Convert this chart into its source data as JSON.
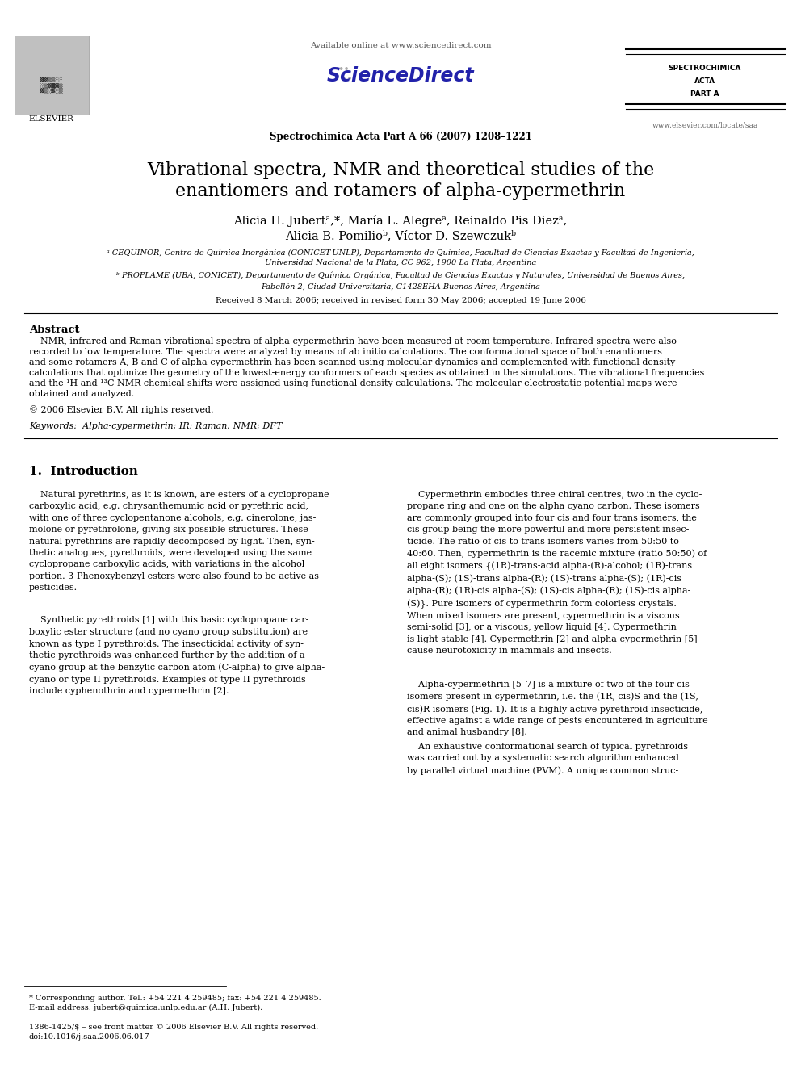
{
  "bg_color": "#ffffff",
  "available_online": "Available online at www.sciencedirect.com",
  "journal_name": "Spectrochimica Acta Part A 66 (2007) 1208–1221",
  "journal_website": "www.elsevier.com/locate/saa",
  "spectrochimica_lines": [
    "SPECTROCHIMICA",
    "ACTA",
    "PART A"
  ],
  "title_line1": "Vibrational spectra, NMR and theoretical studies of the",
  "title_line2": "enantiomers and rotamers of alpha-cypermethrin",
  "authors_line1": "Alicia H. Jubertᵃ,*, María L. Alegreᵃ, Reinaldo Pis Diezᵃ,",
  "authors_line2": "Alicia B. Pomilioᵇ, Víctor D. Szewczukᵇ",
  "affil_a": "ᵃ CEQUINOR, Centro de Química Inorgánica (CONICET-UNLP), Departamento de Química, Facultad de Ciencias Exactas y Facultad de Ingeniería,",
  "affil_a2": "Universidad Nacional de la Plata, CC 962, 1900 La Plata, Argentina",
  "affil_b": "ᵇ PROPLAME (UBA, CONICET), Departamento de Química Orgánica, Facultad de Ciencias Exactas y Naturales, Universidad de Buenos Aires,",
  "affil_b2": "Pabellón 2, Ciudad Universitaria, C1428EHA Buenos Aires, Argentina",
  "received": "Received 8 March 2006; received in revised form 30 May 2006; accepted 19 June 2006",
  "abstract_title": "Abstract",
  "abstract_line1": "    NMR, infrared and Raman vibrational spectra of alpha-cypermethrin have been measured at room temperature. Infrared spectra were also",
  "abstract_line2": "recorded to low temperature. The spectra were analyzed by means of ab initio calculations. The conformational space of both enantiomers",
  "abstract_line3": "and some rotamers A, B and C of alpha-cypermethrin has been scanned using molecular dynamics and complemented with functional density",
  "abstract_line4": "calculations that optimize the geometry of the lowest-energy conformers of each species as obtained in the simulations. The vibrational frequencies",
  "abstract_line5": "and the ¹H and ¹³C NMR chemical shifts were assigned using functional density calculations. The molecular electrostatic potential maps were",
  "abstract_line6": "obtained and analyzed.",
  "copyright": "© 2006 Elsevier B.V. All rights reserved.",
  "keywords": "Keywords:  Alpha-cypermethrin; IR; Raman; NMR; DFT",
  "section1_title": "1.  Introduction",
  "intro_left1": "    Natural pyrethrins, as it is known, are esters of a cyclopropane\ncarboxylic acid, e.g. chrysanthemumic acid or pyrethric acid,\nwith one of three cyclopentanone alcohols, e.g. cinerolone, jas-\nmolone or pyrethrolone, giving six possible structures. These\nnatural pyrethrins are rapidly decomposed by light. Then, syn-\nthetic analogues, pyrethroids, were developed using the same\ncyclopropane carboxylic acids, with variations in the alcohol\nportion. 3-Phenoxybenzyl esters were also found to be active as\npesticides.",
  "intro_left2": "    Synthetic pyrethroids [1] with this basic cyclopropane car-\nboxylic ester structure (and no cyano group substitution) are\nknown as type I pyrethroids. The insecticidal activity of syn-\nthetic pyrethroids was enhanced further by the addition of a\ncyano group at the benzylic carbon atom (C-alpha) to give alpha-\ncyano or type II pyrethroids. Examples of type II pyrethroids\ninclude cyphenothrin and cypermethrin [2].",
  "intro_right1": "    Cypermethrin embodies three chiral centres, two in the cyclo-\npropane ring and one on the alpha cyano carbon. These isomers\nare commonly grouped into four cis and four trans isomers, the\ncis group being the more powerful and more persistent insec-\nticide. The ratio of cis to trans isomers varies from 50:50 to\n40:60. Then, cypermethrin is the racemic mixture (ratio 50:50) of\nall eight isomers {(1R)-trans-acid alpha-(R)-alcohol; (1R)-trans\nalpha-(S); (1S)-trans alpha-(R); (1S)-trans alpha-(S); (1R)-cis\nalpha-(R); (1R)-cis alpha-(S); (1S)-cis alpha-(R); (1S)-cis alpha-\n(S)}. Pure isomers of cypermethrin form colorless crystals.\nWhen mixed isomers are present, cypermethrin is a viscous\nsemi-solid [3], or a viscous, yellow liquid [4]. Cypermethrin\nis light stable [4]. Cypermethrin [2] and alpha-cypermethrin [5]\ncause neurotoxicity in mammals and insects.",
  "intro_right2": "    Alpha-cypermethrin [5–7] is a mixture of two of the four cis\nisomers present in cypermethrin, i.e. the (1R, cis)S and the (1S,\ncis)R isomers (Fig. 1). It is a highly active pyrethroid insecticide,\neffective against a wide range of pests encountered in agriculture\nand animal husbandry [8].",
  "intro_right3": "    An exhaustive conformational search of typical pyrethroids\nwas carried out by a systematic search algorithm enhanced\nby parallel virtual machine (PVM). A unique common struc-",
  "footnote_star": "* Corresponding author. Tel.: +54 221 4 259485; fax: +54 221 4 259485.",
  "footnote_email": "E-mail address: jubert@quimica.unlp.edu.ar (A.H. Jubert).",
  "footnote_issn": "1386-1425/$ – see front matter © 2006 Elsevier B.V. All rights reserved.",
  "footnote_doi": "doi:10.1016/j.saa.2006.06.017"
}
